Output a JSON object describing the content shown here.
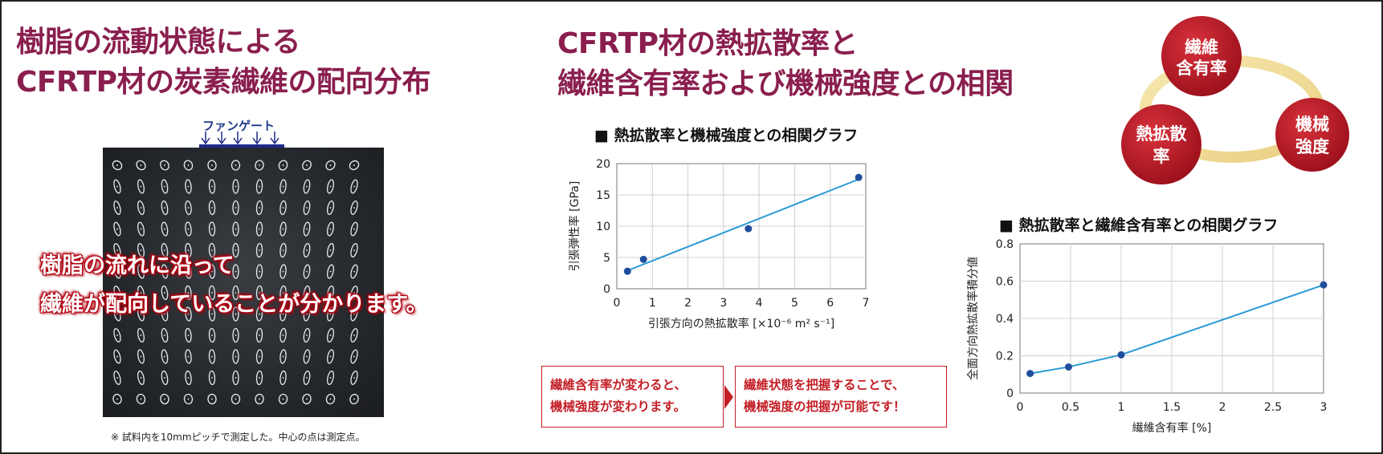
{
  "titles": {
    "left": [
      "樹脂の流動状態による",
      "CFRTP材の炭素繊維の配向分布"
    ],
    "center": [
      "CFRTP材の熱拡散率と",
      "繊維含有率および機械強度との相関"
    ]
  },
  "photo": {
    "gate_label": "ファンゲート",
    "overlay": [
      "樹脂の流れに沿って",
      "繊維が配向していることが分かります。"
    ],
    "note": "※ 試料内を10mmピッチで測定した。中心の点は測定点。"
  },
  "notes": {
    "left": [
      "繊維含有率が変わると、",
      "機械強度が変わります。"
    ],
    "right": [
      "繊維状態を把握することで、",
      "機械強度の把握が可能です！"
    ]
  },
  "cycle": {
    "top": [
      "繊維",
      "含有率"
    ],
    "left": [
      "熱拡散",
      "率"
    ],
    "right": [
      "機械",
      "強度"
    ]
  },
  "colors": {
    "title": "#8a1f4e",
    "accent_red": "#c41e26",
    "line": "#2a9ad6",
    "point": "#1f4e9c",
    "gate": "#1f2a8a"
  },
  "chart_data": [
    {
      "type": "scatter",
      "title": "■ 熱拡散率と機械強度との相関グラフ",
      "xlabel": "引張方向の熱拡散率 [×10⁻⁶ m² s⁻¹]",
      "ylabel": "引張弾性率 [GPa]",
      "xlim": [
        0,
        7
      ],
      "ylim": [
        0,
        20
      ],
      "xticks": [
        "0",
        "1",
        "2",
        "3",
        "4",
        "5",
        "6",
        "7"
      ],
      "yticks": [
        "0",
        "5",
        "10",
        "15",
        "20"
      ],
      "grid": true,
      "points": [
        {
          "x": 0.3,
          "y": 2.8
        },
        {
          "x": 0.75,
          "y": 4.7
        },
        {
          "x": 3.7,
          "y": 9.6
        },
        {
          "x": 6.8,
          "y": 17.8
        }
      ],
      "trendline": {
        "x": [
          0.3,
          6.8
        ],
        "y": [
          2.9,
          17.5
        ]
      }
    },
    {
      "type": "line",
      "title": "■ 熱拡散率と繊維含有率との相関グラフ",
      "xlabel": "繊維含有率 [%]",
      "ylabel": "全面方向熱拡散率積分値",
      "xlim": [
        0,
        3
      ],
      "ylim": [
        0,
        0.8
      ],
      "xticks": [
        "0",
        "0.5",
        "1",
        "1.5",
        "2",
        "2.5",
        "3"
      ],
      "yticks": [
        "0",
        "0.2",
        "0.4",
        "0.6",
        "0.8"
      ],
      "grid": true,
      "points": [
        {
          "x": 0.1,
          "y": 0.105
        },
        {
          "x": 0.48,
          "y": 0.14
        },
        {
          "x": 1.0,
          "y": 0.205
        },
        {
          "x": 3.0,
          "y": 0.58
        }
      ]
    }
  ]
}
